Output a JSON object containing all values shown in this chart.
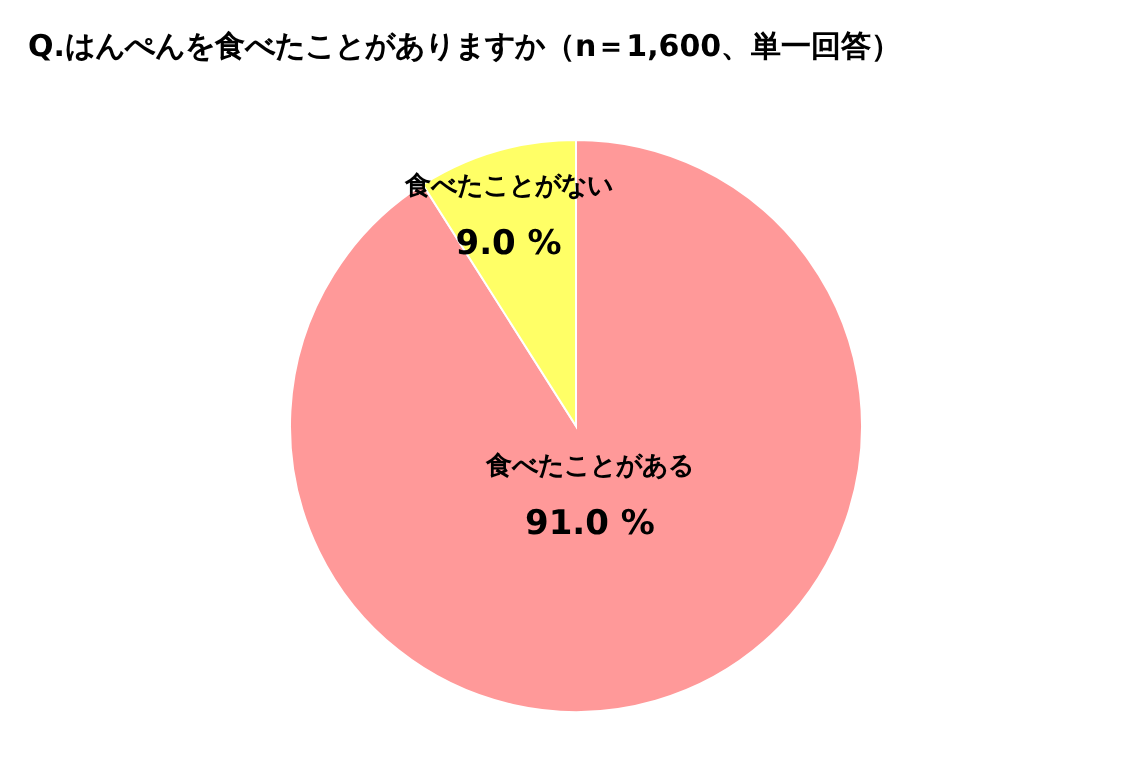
{
  "chart_data": {
    "type": "pie",
    "title": "Q.はんぺんを食べたことがありますか（n＝1,600、単一回答）",
    "categories": [
      "食べたことがある",
      "食べたことがない"
    ],
    "values": [
      91.0,
      9.0
    ],
    "value_labels": [
      "91.0 %",
      "9.0 %"
    ],
    "colors": [
      "#ff9999",
      "#ffff66"
    ],
    "legend": false
  }
}
